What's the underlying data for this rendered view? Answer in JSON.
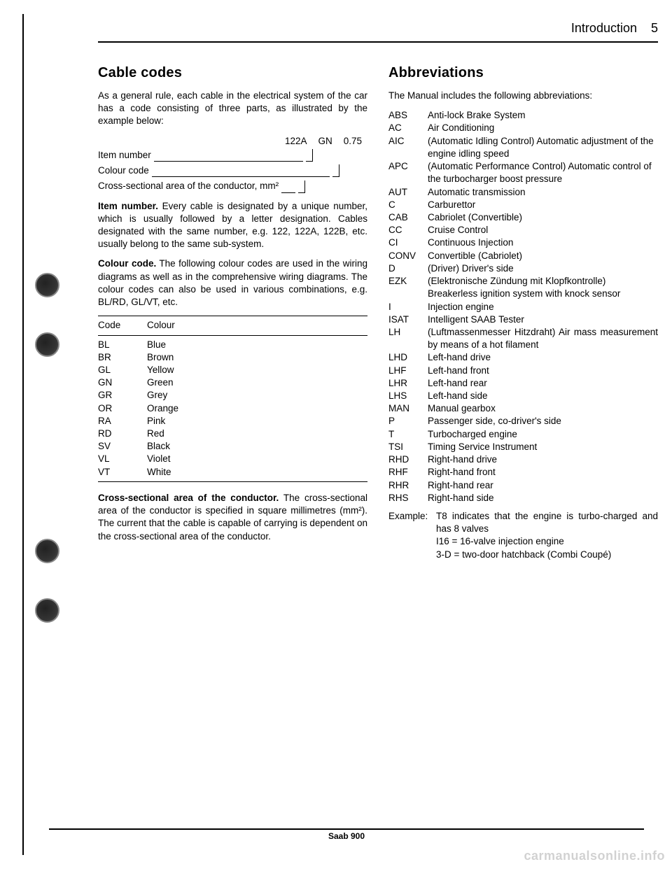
{
  "header": {
    "section": "Introduction",
    "page": "5"
  },
  "left": {
    "h": "Cable codes",
    "intro": "As a general rule, each cable in the electrical system of the car has a code consisting of three parts, as illustrated by the example below:",
    "diagram": {
      "v1": "122A",
      "v2": "GN",
      "v3": "0.75",
      "l1": "Item number",
      "l2": "Colour code",
      "l3": "Cross-sectional area of the conductor, mm²"
    },
    "item_number_label": "Item number.",
    "item_number_text": " Every cable is designated by a unique number, which is usually followed by a letter designation. Cables designated with the same number, e.g. 122, 122A, 122B, etc. usually belong to the same sub-system.",
    "colour_code_label": "Colour code.",
    "colour_code_text": " The following colour codes are used in the wiring diagrams as well as in the comprehensive wiring diagrams. The colour codes can also be used in various combinations, e.g. BL/RD, GL/VT, etc.",
    "table": {
      "h1": "Code",
      "h2": "Colour",
      "rows": [
        {
          "c": "BL",
          "n": "Blue"
        },
        {
          "c": "BR",
          "n": "Brown"
        },
        {
          "c": "GL",
          "n": "Yellow"
        },
        {
          "c": "GN",
          "n": "Green"
        },
        {
          "c": "GR",
          "n": "Grey"
        },
        {
          "c": "OR",
          "n": "Orange"
        },
        {
          "c": "RA",
          "n": "Pink"
        },
        {
          "c": "RD",
          "n": "Red"
        },
        {
          "c": "SV",
          "n": "Black"
        },
        {
          "c": "VL",
          "n": "Violet"
        },
        {
          "c": "VT",
          "n": "White"
        }
      ]
    },
    "cross_label": "Cross-sectional area of the conductor.",
    "cross_text": " The cross-sectional area of the conductor is specified in square millimetres (mm²). The current that the cable is capable of carrying is dependent on the cross-sectional area of the conductor."
  },
  "right": {
    "h": "Abbreviations",
    "intro": "The Manual includes the following abbreviations:",
    "rows": [
      {
        "a": "ABS",
        "d": "Anti-lock Brake System"
      },
      {
        "a": "AC",
        "d": "Air Conditioning"
      },
      {
        "a": "AIC",
        "d": "(Automatic Idling Control) Automatic adjustment of the engine idling speed"
      },
      {
        "a": "APC",
        "d": "(Automatic Performance Control) Automatic control of the turbocharger boost pressure"
      },
      {
        "a": "AUT",
        "d": "Automatic transmission"
      },
      {
        "a": "C",
        "d": "Carburettor"
      },
      {
        "a": "CAB",
        "d": "Cabriolet (Convertible)"
      },
      {
        "a": "CC",
        "d": "Cruise Control"
      },
      {
        "a": "CI",
        "d": "Continuous Injection"
      },
      {
        "a": "CONV",
        "d": "Convertible (Cabriolet)"
      },
      {
        "a": "D",
        "d": "(Driver) Driver's side"
      },
      {
        "a": "EZK",
        "d": "(Elektronische Zündung mit Klopfkontrolle) Breakerless ignition system with knock sensor"
      },
      {
        "a": "I",
        "d": "Injection engine"
      },
      {
        "a": "ISAT",
        "d": "Intelligent SAAB Tester"
      },
      {
        "a": "LH",
        "d": "(Luftmassenmesser Hitzdraht) Air mass measurement by means of a hot filament"
      },
      {
        "a": "LHD",
        "d": "Left-hand drive"
      },
      {
        "a": "LHF",
        "d": "Left-hand front"
      },
      {
        "a": "LHR",
        "d": "Left-hand rear"
      },
      {
        "a": "LHS",
        "d": "Left-hand side"
      },
      {
        "a": "MAN",
        "d": "Manual gearbox"
      },
      {
        "a": "P",
        "d": "Passenger side, co-driver's side"
      },
      {
        "a": "T",
        "d": "Turbocharged engine"
      },
      {
        "a": "TSI",
        "d": "Timing Service Instrument"
      },
      {
        "a": "RHD",
        "d": "Right-hand drive"
      },
      {
        "a": "RHF",
        "d": "Right-hand front"
      },
      {
        "a": "RHR",
        "d": "Right-hand rear"
      },
      {
        "a": "RHS",
        "d": "Right-hand side"
      }
    ],
    "example_label": "Example:",
    "example_lines": [
      "T8 indicates that the engine is turbo-charged and has 8 valves",
      "I16 = 16-valve injection engine",
      "3-D = two-door hatchback (Combi Coupé)"
    ]
  },
  "footer": "Saab 900",
  "watermark": "carmanualsonline.info"
}
